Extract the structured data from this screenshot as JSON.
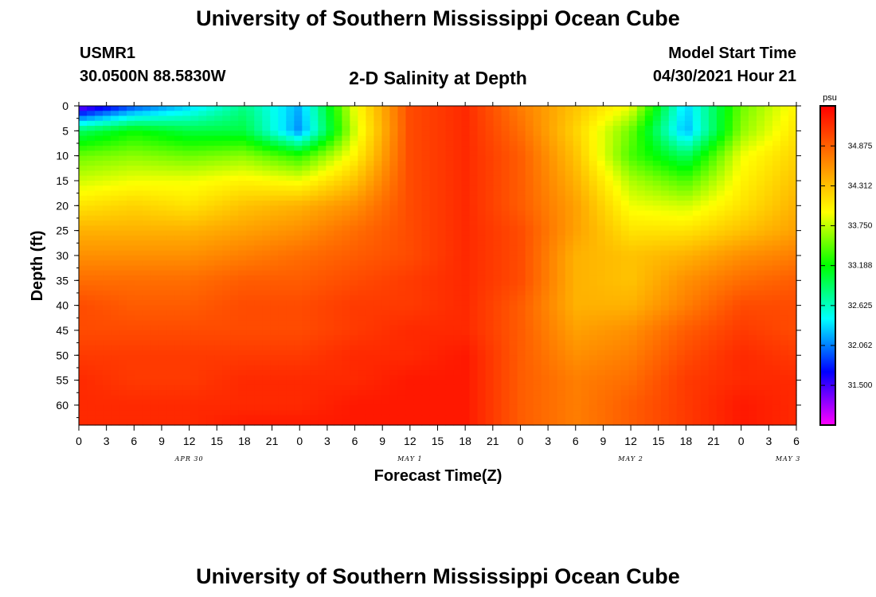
{
  "header": {
    "title": "University of Southern Mississippi Ocean Cube",
    "footer_title": "University of Southern Mississippi Ocean Cube",
    "station": "USMR1",
    "coords": "30.0500N  88.5830W",
    "plot_title": "2-D Salinity at Depth",
    "model_start_label": "Model Start Time",
    "model_start_value": "04/30/2021 Hour 21"
  },
  "chart_data": {
    "type": "heatmap",
    "title": "2-D Salinity at Depth",
    "xlabel": "Forecast Time(Z)",
    "ylabel": "Depth (ft)",
    "x_tick_labels": [
      "0",
      "3",
      "6",
      "9",
      "12",
      "15",
      "18",
      "21",
      "0",
      "3",
      "6",
      "9",
      "12",
      "15",
      "18",
      "21",
      "0",
      "3",
      "6",
      "9",
      "12",
      "15",
      "18",
      "21",
      "0",
      "3",
      "6"
    ],
    "date_labels": [
      {
        "label": "APR 30",
        "tick_index": 4
      },
      {
        "label": "MAY 1",
        "tick_index": 12
      },
      {
        "label": "MAY 2",
        "tick_index": 20
      },
      {
        "label": "MAY 3",
        "tick_index": 25.7
      }
    ],
    "y_ticks": [
      0,
      5,
      10,
      15,
      20,
      25,
      30,
      35,
      40,
      45,
      50,
      55,
      60
    ],
    "ylim": [
      0,
      64
    ],
    "x_hours_range": [
      0,
      78
    ],
    "colorbar": {
      "unit": "psu",
      "range": [
        30.94,
        35.44
      ],
      "tick_labels": [
        "34.875",
        "34.312",
        "33.750",
        "33.188",
        "32.625",
        "32.062",
        "31.500"
      ],
      "colors": [
        "#ff00ff",
        "#8000ff",
        "#0000ff",
        "#0080ff",
        "#00ffff",
        "#00ff80",
        "#00ff00",
        "#80ff00",
        "#ffff00",
        "#ffc000",
        "#ff8000",
        "#ff4000",
        "#ff0000"
      ]
    },
    "salinity_grid": {
      "depths_ft": [
        0,
        5,
        10,
        15,
        20,
        25,
        30,
        35,
        40,
        45,
        50,
        55,
        60,
        64
      ],
      "hours": [
        0,
        6,
        12,
        18,
        24,
        30,
        36,
        42,
        48,
        54,
        60,
        66,
        72,
        78
      ],
      "values": [
        [
          31.3,
          31.9,
          32.3,
          32.8,
          32.2,
          33.9,
          35.0,
          35.2,
          34.7,
          34.3,
          33.9,
          32.3,
          33.5,
          34.0
        ],
        [
          32.9,
          33.2,
          33.0,
          33.0,
          32.1,
          33.8,
          35.0,
          35.2,
          34.8,
          34.2,
          33.5,
          32.2,
          33.6,
          34.1
        ],
        [
          33.5,
          33.6,
          33.5,
          33.6,
          33.3,
          34.0,
          35.0,
          35.2,
          34.9,
          34.3,
          33.4,
          32.9,
          33.9,
          34.2
        ],
        [
          33.8,
          33.9,
          33.9,
          34.0,
          33.9,
          34.3,
          35.0,
          35.2,
          34.9,
          34.4,
          33.7,
          33.4,
          34.0,
          34.3
        ],
        [
          34.1,
          34.2,
          34.1,
          34.3,
          34.4,
          34.6,
          35.0,
          35.2,
          34.9,
          34.5,
          33.9,
          33.8,
          34.1,
          34.4
        ],
        [
          34.4,
          34.4,
          34.4,
          34.5,
          34.6,
          34.8,
          35.0,
          35.2,
          35.0,
          34.5,
          34.1,
          34.1,
          34.3,
          34.5
        ],
        [
          34.6,
          34.6,
          34.6,
          34.7,
          34.8,
          34.9,
          35.0,
          35.2,
          35.0,
          34.4,
          34.3,
          34.4,
          34.6,
          34.7
        ],
        [
          34.8,
          34.8,
          34.8,
          34.9,
          34.9,
          35.0,
          35.1,
          35.2,
          35.0,
          34.4,
          34.3,
          34.6,
          34.8,
          34.9
        ],
        [
          35.0,
          34.9,
          34.9,
          35.0,
          35.0,
          35.1,
          35.1,
          35.2,
          34.9,
          34.4,
          34.4,
          34.7,
          35.0,
          35.0
        ],
        [
          35.0,
          35.0,
          35.0,
          35.0,
          35.0,
          35.1,
          35.2,
          35.2,
          34.9,
          34.5,
          34.6,
          34.9,
          35.1,
          35.0
        ],
        [
          35.1,
          35.1,
          35.1,
          35.1,
          35.1,
          35.2,
          35.2,
          35.3,
          34.9,
          34.6,
          34.7,
          35.0,
          35.2,
          35.1
        ],
        [
          35.2,
          35.1,
          35.1,
          35.2,
          35.2,
          35.2,
          35.3,
          35.3,
          34.9,
          34.7,
          34.8,
          35.1,
          35.2,
          35.2
        ],
        [
          35.2,
          35.2,
          35.2,
          35.2,
          35.2,
          35.3,
          35.3,
          35.3,
          34.9,
          34.7,
          34.9,
          35.1,
          35.3,
          35.2
        ],
        [
          35.2,
          35.2,
          35.2,
          35.3,
          35.3,
          35.3,
          35.3,
          35.3,
          34.9,
          34.7,
          34.9,
          35.1,
          35.3,
          35.2
        ]
      ]
    }
  }
}
